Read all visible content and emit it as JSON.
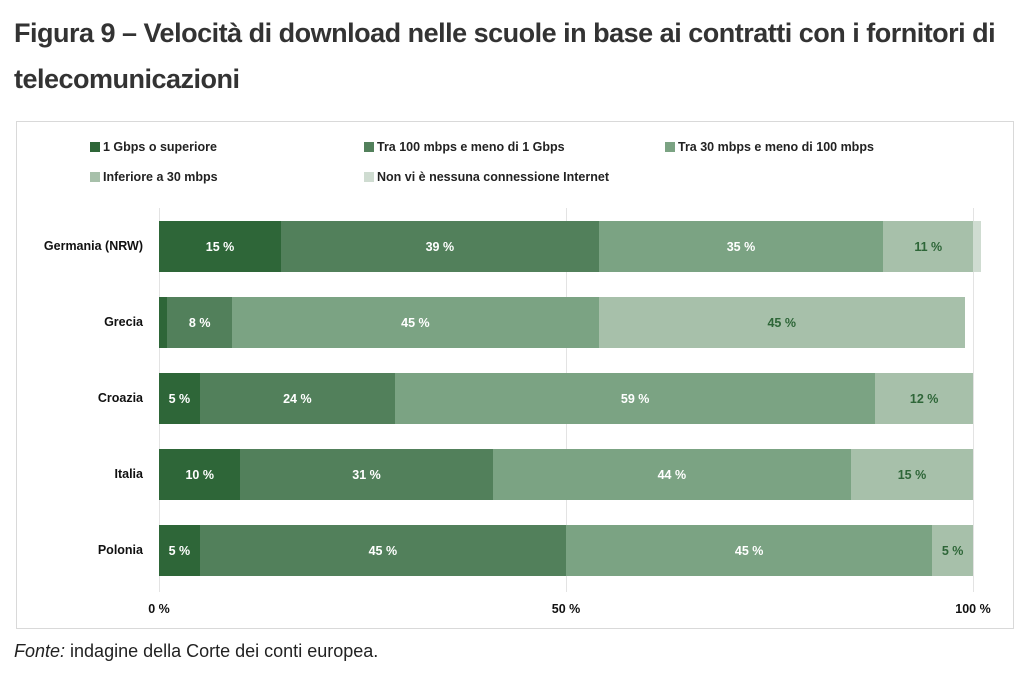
{
  "title": "Figura 9 – Velocità di download nelle scuole in base ai contratti con i fornitori di telecomunicazioni",
  "source": {
    "prefix": "Fonte:",
    "text": " indagine della Corte dei conti europea."
  },
  "chart_data": {
    "type": "bar",
    "orientation": "horizontal",
    "stacked": true,
    "title": "Figura 9 – Velocità di download nelle scuole in base ai contratti con i fornitori di telecomunicazioni",
    "xlabel": "",
    "ylabel": "",
    "xlim": [
      0,
      100
    ],
    "x_ticks": [
      "0 %",
      "50 %",
      "100 %"
    ],
    "grid": true,
    "legend_position": "top",
    "categories": [
      "Germania (NRW)",
      "Grecia",
      "Croazia",
      "Italia",
      "Polonia"
    ],
    "series": [
      {
        "name": "1 Gbps o superiore",
        "color": "#2e6638",
        "label_color": "#ffffff",
        "values": [
          15,
          1,
          5,
          10,
          5
        ],
        "labels": [
          "15 %",
          "",
          "5 %",
          "10 %",
          "5 %"
        ]
      },
      {
        "name": "Tra 100 mbps e meno di 1 Gbps",
        "color": "#52805b",
        "label_color": "#ffffff",
        "values": [
          39,
          8,
          24,
          31,
          45
        ],
        "labels": [
          "39 %",
          "8 %",
          "24 %",
          "31 %",
          "45 %"
        ]
      },
      {
        "name": "Tra 30 mbps e meno di 100 mbps",
        "color": "#7ba383",
        "label_color": "#ffffff",
        "values": [
          35,
          45,
          59,
          44,
          45
        ],
        "labels": [
          "35 %",
          "45 %",
          "59 %",
          "44 %",
          "45 %"
        ]
      },
      {
        "name": "Inferiore a 30 mbps",
        "color": "#a7c0aa",
        "label_color": "#2e6638",
        "values": [
          11,
          45,
          12,
          15,
          5
        ],
        "labels": [
          "11 %",
          "45 %",
          "12 %",
          "15 %",
          "5 %"
        ]
      },
      {
        "name": "Non vi è nessuna connessione Internet",
        "color": "#cfdcd1",
        "label_color": "#2e6638",
        "values": [
          1,
          0,
          0,
          0,
          0
        ],
        "labels": [
          "",
          "",
          "",
          "",
          ""
        ]
      }
    ]
  }
}
